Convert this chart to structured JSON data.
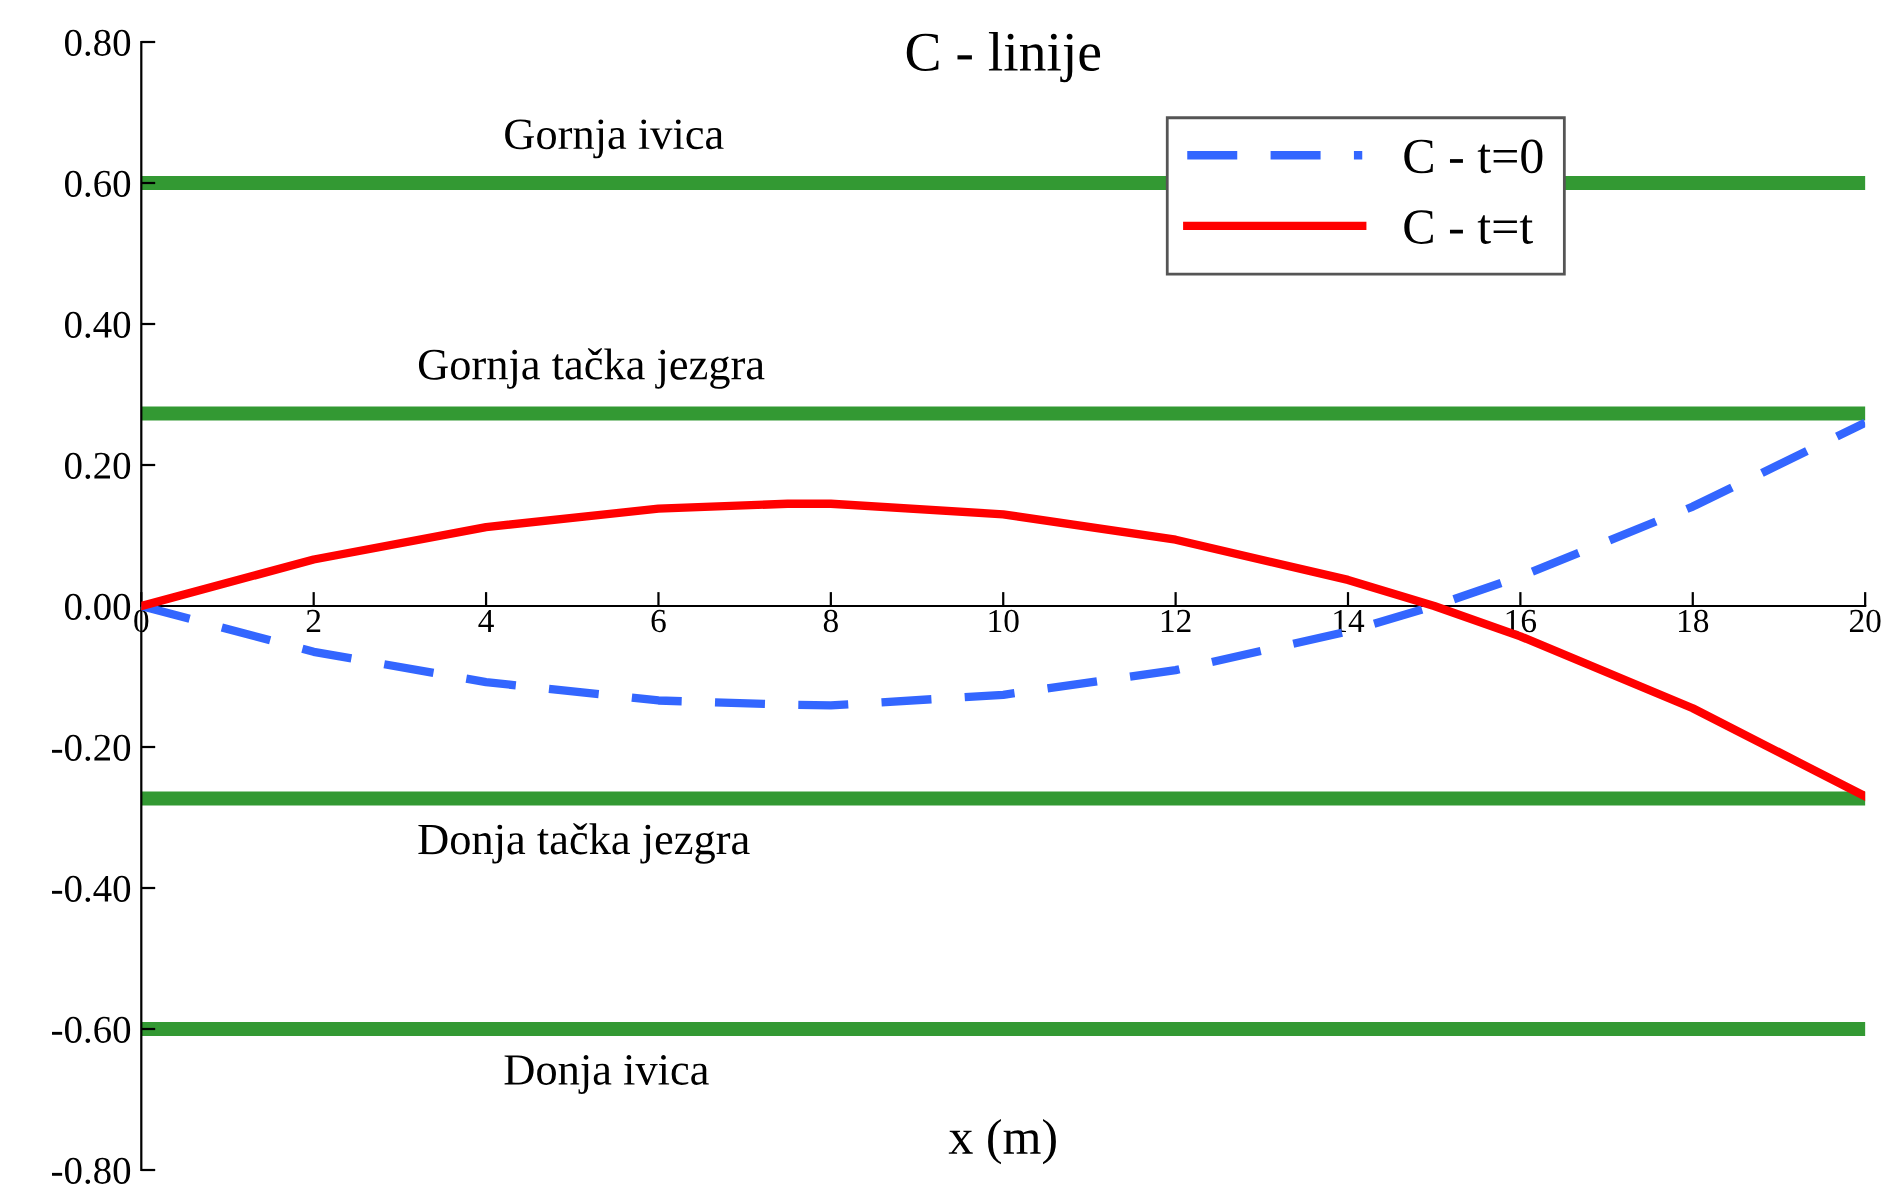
{
  "chart_data": {
    "type": "line",
    "title": "C - linije",
    "xlabel": "x (m)",
    "x": [
      0,
      2,
      4,
      6,
      7.5,
      8,
      10,
      12,
      14,
      15,
      16,
      18,
      20
    ],
    "series": [
      {
        "name": "C - t=0",
        "color": "#3366ff",
        "line_style": "dashed",
        "values": [
          0,
          -0.065,
          -0.108,
          -0.134,
          -0.14,
          -0.141,
          -0.126,
          -0.091,
          -0.036,
          0,
          0.042,
          0.141,
          0.26
        ]
      },
      {
        "name": "C - t=t",
        "color": "#ff0000",
        "line_style": "solid",
        "values": [
          0,
          0.066,
          0.112,
          0.138,
          0.145,
          0.145,
          0.13,
          0.094,
          0.037,
          0,
          -0.043,
          -0.145,
          -0.27
        ]
      }
    ],
    "ref_lines": [
      {
        "axis": "y",
        "value": 0.6,
        "label": "Gornja ivica",
        "color": "#339933"
      },
      {
        "axis": "y",
        "value": 0.273,
        "label": "Gornja tačka jezgra",
        "color": "#339933"
      },
      {
        "axis": "y",
        "value": -0.273,
        "label": "Donja tačka jezgra",
        "color": "#339933"
      },
      {
        "axis": "y",
        "value": -0.6,
        "label": "Donja ivica",
        "color": "#339933"
      }
    ],
    "xlim": [
      0,
      20
    ],
    "xticks": [
      0,
      2,
      4,
      6,
      8,
      10,
      12,
      14,
      16,
      18,
      20
    ],
    "ylim": [
      -0.8,
      0.8
    ],
    "yticks": [
      {
        "value": -0.8,
        "label": "-0.80"
      },
      {
        "value": -0.6,
        "label": "-0.60"
      },
      {
        "value": -0.4,
        "label": "-0.40"
      },
      {
        "value": -0.2,
        "label": "-0.20"
      },
      {
        "value": 0,
        "label": "0.00"
      },
      {
        "value": 0.2,
        "label": "0.20"
      },
      {
        "value": 0.4,
        "label": "0.40"
      },
      {
        "value": 0.6,
        "label": "0.60"
      },
      {
        "value": 0.8,
        "label": "0.80"
      }
    ],
    "grid": false,
    "legend": "top right",
    "marker": "none"
  }
}
